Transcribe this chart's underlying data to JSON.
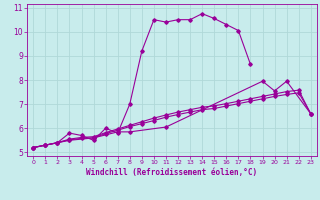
{
  "title": "",
  "xlabel": "Windchill (Refroidissement éolien,°C)",
  "ylabel": "",
  "bg_color": "#c8ecec",
  "line_color": "#990099",
  "grid_color": "#b0d8d8",
  "xlim": [
    -0.5,
    23.5
  ],
  "ylim": [
    4.85,
    11.15
  ],
  "xticks": [
    0,
    1,
    2,
    3,
    4,
    5,
    6,
    7,
    8,
    9,
    10,
    11,
    12,
    13,
    14,
    15,
    16,
    17,
    18,
    19,
    20,
    21,
    22,
    23
  ],
  "yticks": [
    5,
    6,
    7,
    8,
    9,
    10,
    11
  ],
  "series": [
    {
      "x": [
        0,
        1,
        2,
        3,
        4,
        5,
        6,
        7,
        8,
        9,
        10,
        11,
        12,
        13,
        14,
        15,
        16,
        17,
        18
      ],
      "y": [
        5.2,
        5.3,
        5.4,
        5.8,
        5.7,
        5.5,
        6.0,
        5.8,
        7.0,
        9.2,
        10.5,
        10.4,
        10.5,
        10.5,
        10.75,
        10.55,
        10.3,
        10.05,
        8.65
      ]
    },
    {
      "x": [
        0,
        1,
        3,
        5,
        7,
        8,
        11,
        19,
        20,
        21,
        23
      ],
      "y": [
        5.2,
        5.3,
        5.5,
        5.6,
        5.85,
        5.85,
        6.05,
        7.95,
        7.55,
        7.95,
        6.6
      ]
    },
    {
      "x": [
        0,
        1,
        2,
        3,
        4,
        5,
        6,
        7,
        8,
        9,
        10,
        11,
        12,
        13,
        14,
        15,
        16,
        17,
        18,
        19,
        20,
        21,
        22,
        23
      ],
      "y": [
        5.2,
        5.3,
        5.4,
        5.55,
        5.62,
        5.65,
        5.82,
        5.97,
        6.12,
        6.27,
        6.42,
        6.55,
        6.67,
        6.77,
        6.87,
        6.93,
        7.02,
        7.12,
        7.22,
        7.32,
        7.42,
        7.52,
        7.58,
        6.6
      ]
    },
    {
      "x": [
        0,
        1,
        2,
        3,
        4,
        5,
        6,
        7,
        8,
        9,
        10,
        11,
        12,
        13,
        14,
        15,
        16,
        17,
        18,
        19,
        20,
        21,
        22,
        23
      ],
      "y": [
        5.2,
        5.3,
        5.4,
        5.52,
        5.58,
        5.6,
        5.78,
        5.92,
        6.07,
        6.19,
        6.32,
        6.46,
        6.57,
        6.67,
        6.77,
        6.82,
        6.92,
        7.02,
        7.12,
        7.22,
        7.32,
        7.4,
        7.47,
        6.6
      ]
    }
  ]
}
